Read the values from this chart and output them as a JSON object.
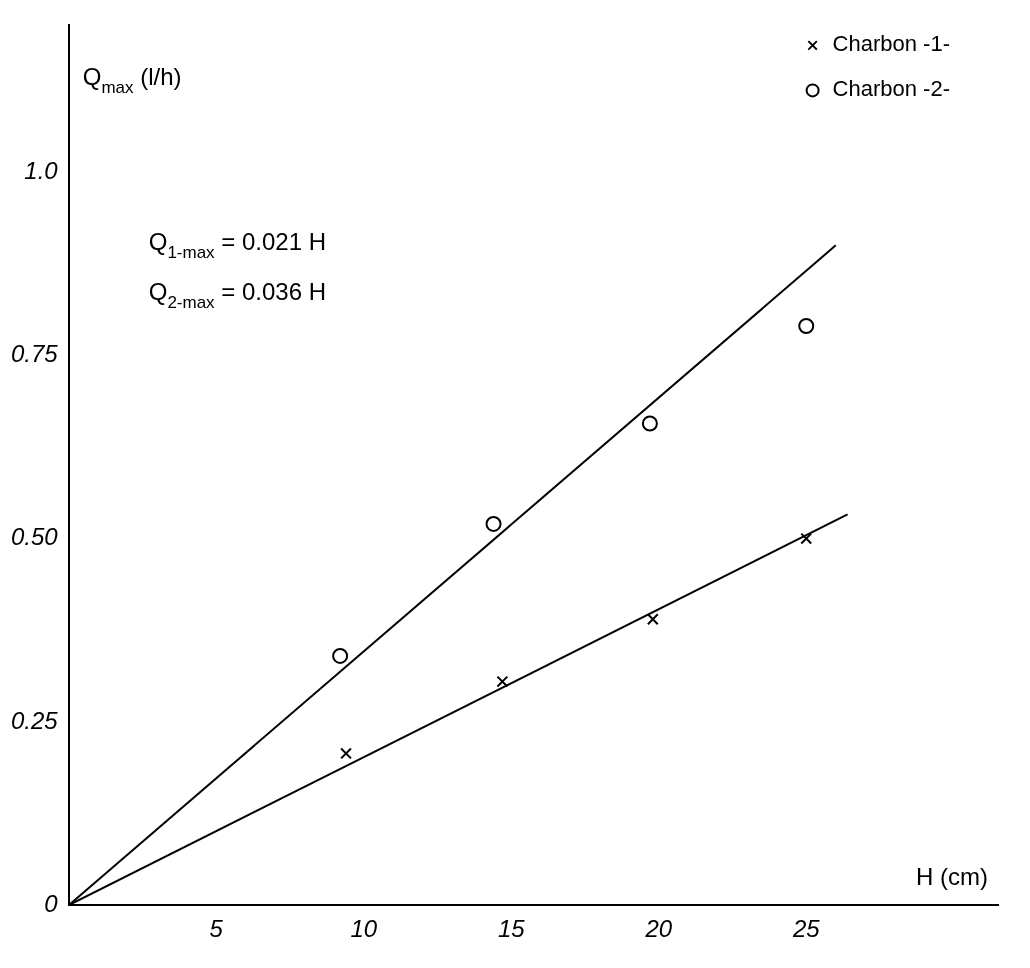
{
  "chart_data": {
    "type": "scatter",
    "xlabel": "H (cm)",
    "ylabel": "Q$_{max}$ (l/h)",
    "xlim": [
      0,
      31.5
    ],
    "ylim": [
      0,
      1.2
    ],
    "xticks": [
      5,
      10,
      15,
      20,
      25
    ],
    "yticks": [
      0,
      0.25,
      {
        "value": 0.5,
        "label": "0.50"
      },
      0.75,
      {
        "value": 1,
        "label": "1.0"
      }
    ],
    "grid": false,
    "legend": "top right",
    "annotations": [
      "Q$_{1-max}$ = 0.021 H",
      "Q$_{2-max}$ = 0.036 H"
    ],
    "series": [
      {
        "name": "Charbon -1-",
        "color": "#000000",
        "marker": "cross",
        "x": [
          9.4,
          14.7,
          19.8,
          25.0
        ],
        "values": [
          0.207,
          0.305,
          0.39,
          0.5
        ]
      },
      {
        "name": "Charbon -2-",
        "color": "#000000",
        "marker": "circle",
        "x": [
          9.2,
          14.4,
          19.7,
          25.0
        ],
        "values": [
          0.34,
          0.52,
          0.657,
          0.79
        ]
      },
      {
        "type": "line",
        "color": "#000000",
        "marker": "none",
        "x": [
          0,
          26.4
        ],
        "values": [
          0,
          0.533
        ]
      },
      {
        "type": "line",
        "color": "#000000",
        "marker": "none",
        "x": [
          0,
          26.0
        ],
        "values": [
          0,
          0.9
        ]
      }
    ]
  }
}
